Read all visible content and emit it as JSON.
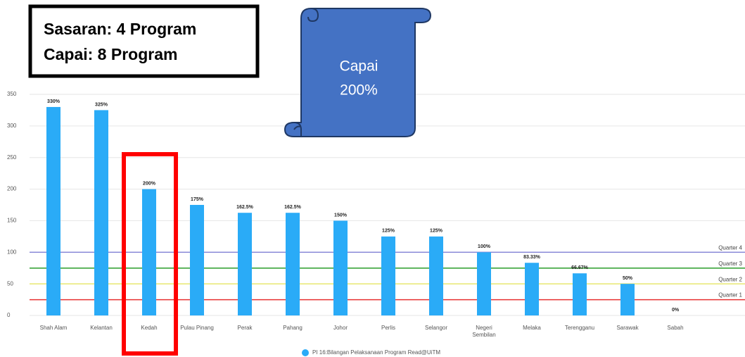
{
  "chart_data": {
    "type": "bar",
    "categories": [
      "Shah Alam",
      "Kelantan",
      "Kedah",
      "Pulau Pinang",
      "Perak",
      "Pahang",
      "Johor",
      "Perlis",
      "Selangor",
      "Negeri Sembilan",
      "Melaka",
      "Terengganu",
      "Sarawak",
      "Sabah"
    ],
    "series": [
      {
        "name": "PI 16:Bilangan Pelaksanaan Program Read@UiTM",
        "color": "#2aabf7",
        "values": [
          330,
          325,
          200,
          175,
          162.5,
          162.5,
          150,
          125,
          125,
          100,
          83.33,
          66.67,
          50,
          0
        ],
        "value_labels": [
          "330%",
          "325%",
          "200%",
          "175%",
          "162.5%",
          "162.5%",
          "150%",
          "125%",
          "125%",
          "100%",
          "83.33%",
          "66.67%",
          "50%",
          "0%"
        ]
      }
    ],
    "ylim": [
      0,
      350
    ],
    "yticks": [
      0,
      50,
      100,
      150,
      200,
      250,
      300,
      350
    ],
    "grid": true,
    "reference_lines": [
      {
        "label": "Quarter 4",
        "value": 100,
        "color": "#8a8ad8"
      },
      {
        "label": "Quarter 3",
        "value": 75,
        "color": "#2a9d2a"
      },
      {
        "label": "Quarter 2",
        "value": 50,
        "color": "#e8e870"
      },
      {
        "label": "Quarter 1",
        "value": 25,
        "color": "#e83030"
      }
    ]
  },
  "annotations": {
    "box_lines": [
      "Sasaran: 4 Program",
      "Capai: 8 Program"
    ],
    "scroll_lines": [
      "Capai",
      "200%"
    ]
  }
}
